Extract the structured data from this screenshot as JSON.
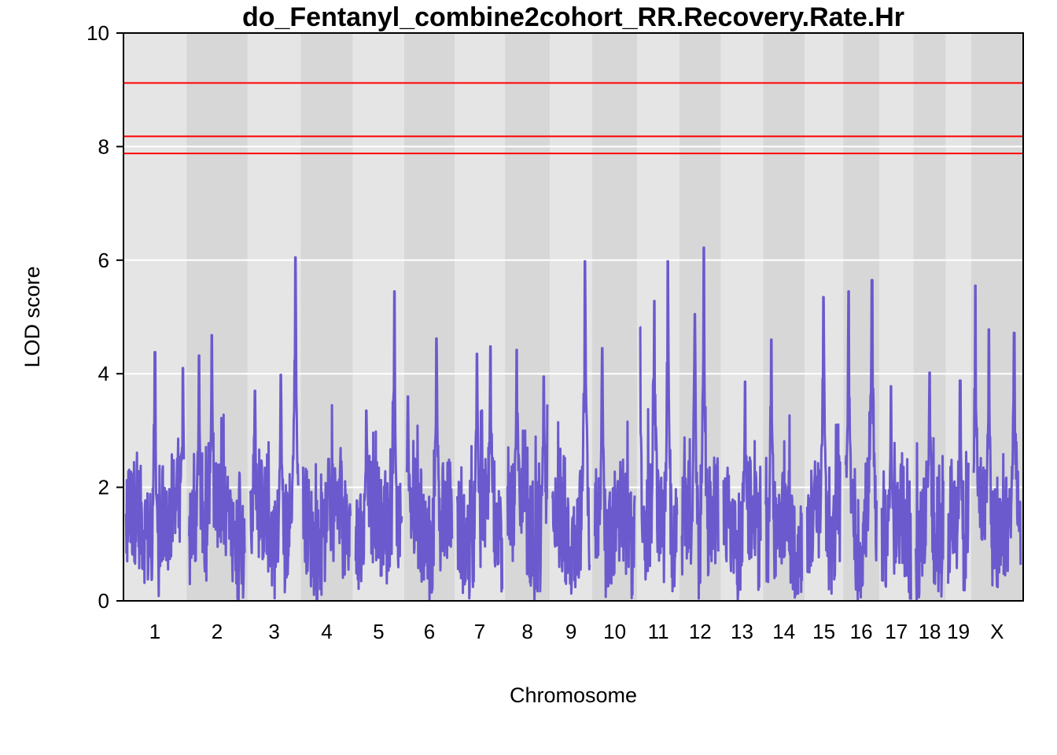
{
  "chart_data": {
    "type": "line",
    "title": "do_Fentanyl_combine2cohort_RR.Recovery.Rate.Hr",
    "xlabel": "Chromosome",
    "ylabel": "LOD score",
    "ylim": [
      0,
      10
    ],
    "yticks": [
      "0",
      "2",
      "4",
      "6",
      "8",
      "10"
    ],
    "grid": true,
    "line_color": "#6a5acd",
    "threshold_color": "#ff0000",
    "thresholds": [
      9.12,
      8.18,
      7.88
    ],
    "chromosomes": [
      {
        "label": "1",
        "start": 0,
        "end": 0.07
      },
      {
        "label": "2",
        "start": 0.07,
        "end": 0.138
      },
      {
        "label": "3",
        "start": 0.138,
        "end": 0.197
      },
      {
        "label": "4",
        "start": 0.197,
        "end": 0.255
      },
      {
        "label": "5",
        "start": 0.255,
        "end": 0.312
      },
      {
        "label": "6",
        "start": 0.312,
        "end": 0.368
      },
      {
        "label": "7",
        "start": 0.368,
        "end": 0.424
      },
      {
        "label": "8",
        "start": 0.424,
        "end": 0.474
      },
      {
        "label": "9",
        "start": 0.474,
        "end": 0.521
      },
      {
        "label": "10",
        "start": 0.521,
        "end": 0.571
      },
      {
        "label": "11",
        "start": 0.571,
        "end": 0.618
      },
      {
        "label": "12",
        "start": 0.618,
        "end": 0.664
      },
      {
        "label": "13",
        "start": 0.664,
        "end": 0.711
      },
      {
        "label": "14",
        "start": 0.711,
        "end": 0.757
      },
      {
        "label": "15",
        "start": 0.757,
        "end": 0.8
      },
      {
        "label": "16",
        "start": 0.8,
        "end": 0.84
      },
      {
        "label": "17",
        "start": 0.84,
        "end": 0.878
      },
      {
        "label": "18",
        "start": 0.878,
        "end": 0.914
      },
      {
        "label": "19",
        "start": 0.914,
        "end": 0.942
      },
      {
        "label": "X",
        "start": 0.942,
        "end": 1.0
      }
    ],
    "series": [
      {
        "peaks": [
          {
            "chr": "1",
            "pos": 0.035,
            "lod": 4.38
          },
          {
            "chr": "1",
            "pos": 0.066,
            "lod": 4.1
          },
          {
            "chr": "2",
            "pos": 0.084,
            "lod": 4.32
          },
          {
            "chr": "2",
            "pos": 0.098,
            "lod": 4.68
          },
          {
            "chr": "3",
            "pos": 0.146,
            "lod": 3.7
          },
          {
            "chr": "3",
            "pos": 0.175,
            "lod": 3.98
          },
          {
            "chr": "3",
            "pos": 0.191,
            "lod": 6.05
          },
          {
            "chr": "4",
            "pos": 0.228,
            "lod": 2.5
          },
          {
            "chr": "5",
            "pos": 0.27,
            "lod": 3.35
          },
          {
            "chr": "5",
            "pos": 0.301,
            "lod": 5.45
          },
          {
            "chr": "6",
            "pos": 0.316,
            "lod": 3.6
          },
          {
            "chr": "6",
            "pos": 0.348,
            "lod": 4.62
          },
          {
            "chr": "7",
            "pos": 0.393,
            "lod": 4.35
          },
          {
            "chr": "7",
            "pos": 0.408,
            "lod": 4.48
          },
          {
            "chr": "8",
            "pos": 0.437,
            "lod": 4.42
          },
          {
            "chr": "8",
            "pos": 0.467,
            "lod": 3.95
          },
          {
            "chr": "9",
            "pos": 0.513,
            "lod": 5.98
          },
          {
            "chr": "10",
            "pos": 0.532,
            "lod": 4.45
          },
          {
            "chr": "11",
            "pos": 0.574,
            "lod": 4.82
          },
          {
            "chr": "11",
            "pos": 0.59,
            "lod": 5.28
          },
          {
            "chr": "11",
            "pos": 0.605,
            "lod": 5.98
          },
          {
            "chr": "12",
            "pos": 0.635,
            "lod": 5.05
          },
          {
            "chr": "12",
            "pos": 0.645,
            "lod": 6.22
          },
          {
            "chr": "13",
            "pos": 0.691,
            "lod": 3.86
          },
          {
            "chr": "14",
            "pos": 0.72,
            "lod": 4.6
          },
          {
            "chr": "15",
            "pos": 0.778,
            "lod": 5.35
          },
          {
            "chr": "16",
            "pos": 0.806,
            "lod": 5.45
          },
          {
            "chr": "16",
            "pos": 0.832,
            "lod": 5.65
          },
          {
            "chr": "17",
            "pos": 0.853,
            "lod": 3.78
          },
          {
            "chr": "18",
            "pos": 0.896,
            "lod": 4.02
          },
          {
            "chr": "19",
            "pos": 0.93,
            "lod": 3.88
          },
          {
            "chr": "X",
            "pos": 0.947,
            "lod": 5.55
          },
          {
            "chr": "X",
            "pos": 0.962,
            "lod": 4.78
          },
          {
            "chr": "X",
            "pos": 0.99,
            "lod": 4.72
          }
        ]
      }
    ]
  }
}
